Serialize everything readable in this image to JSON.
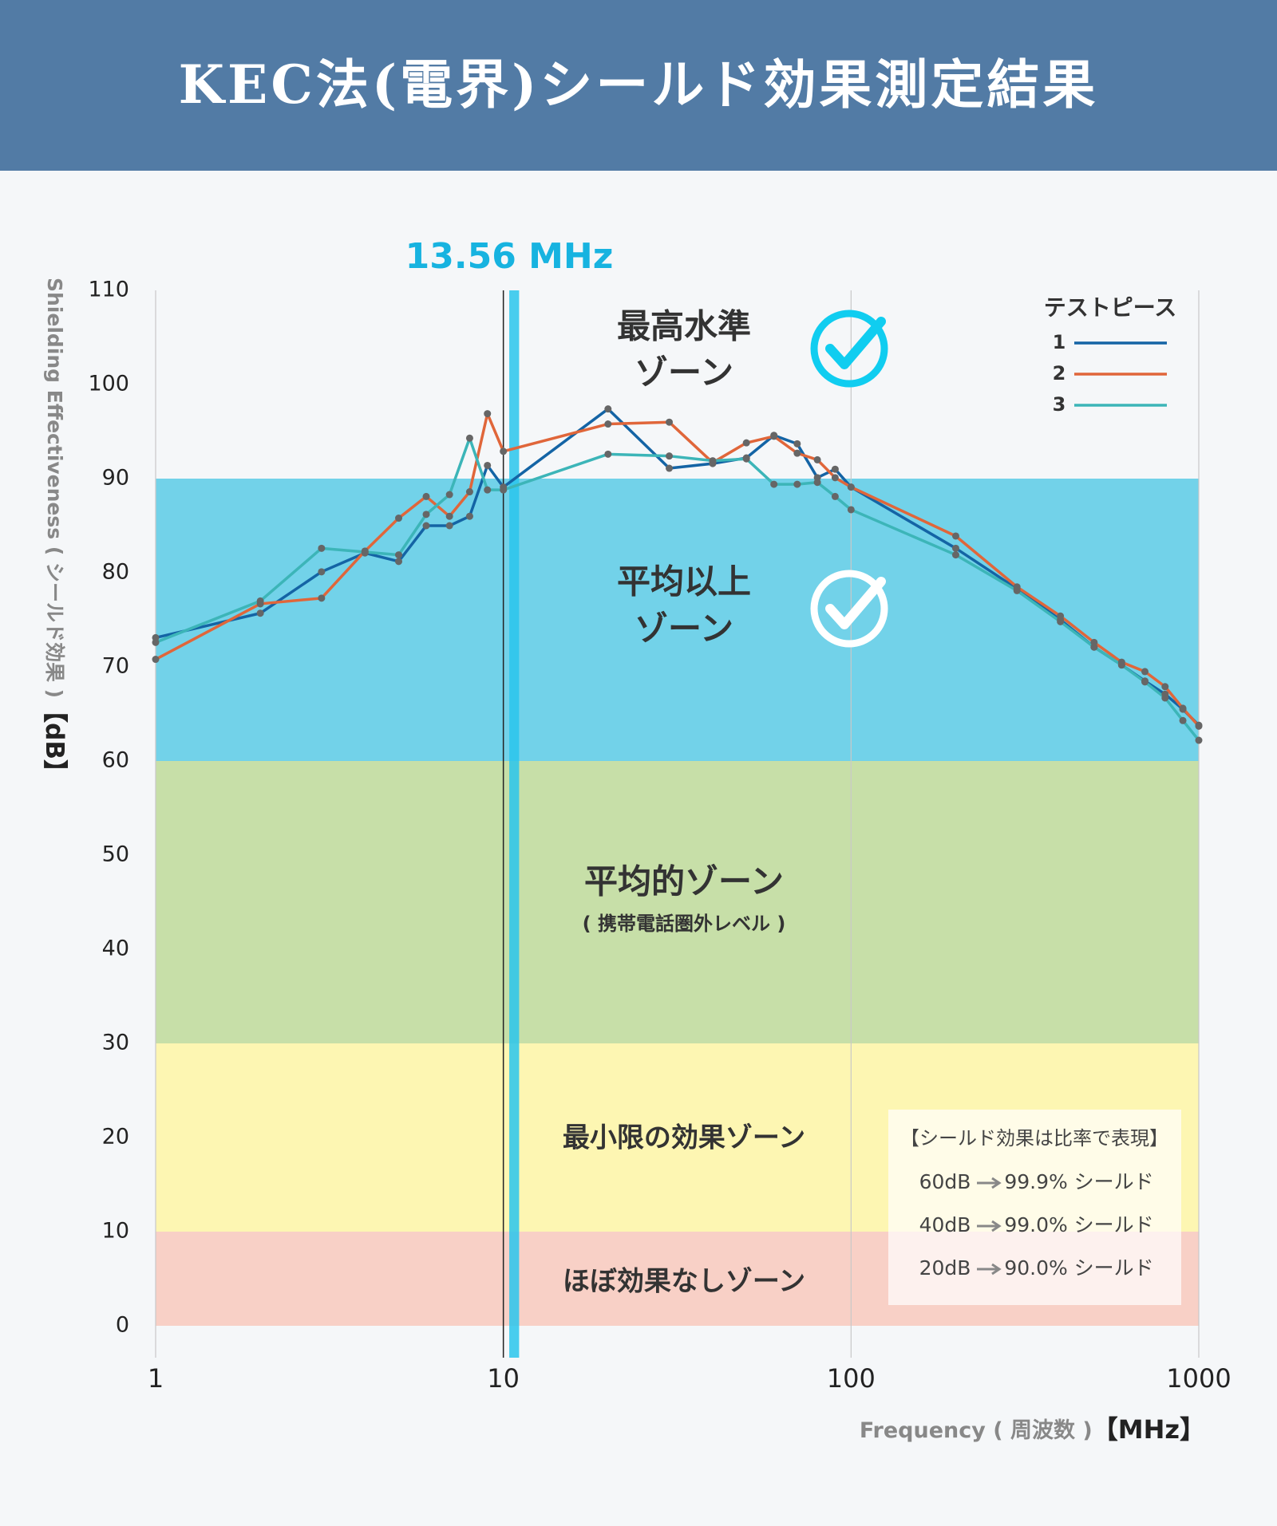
{
  "chart_data": {
    "type": "line",
    "title": "KEC法(電界)シールド効果測定結果",
    "ylabel": "Shielding Effectiveness ( シールド効果 )",
    "yunit": "【dB】",
    "xlabel": "Frequency ( 周波数 )",
    "xunit": "【MHz】",
    "xscale": "log",
    "x": [
      1,
      2,
      3,
      4,
      5,
      6,
      7,
      8,
      9,
      10,
      20,
      30,
      40,
      50,
      60,
      70,
      80,
      90,
      100,
      200,
      300,
      400,
      500,
      600,
      700,
      800,
      900,
      1000
    ],
    "xlim": [
      1,
      1000
    ],
    "xticks": [
      1,
      10,
      100,
      1000
    ],
    "ylim": [
      0,
      110
    ],
    "yticks": [
      0,
      10,
      20,
      30,
      40,
      50,
      60,
      70,
      80,
      90,
      100,
      110
    ],
    "reference_line": 10,
    "marker": {
      "label": "13.56 MHz",
      "x_range": [
        10.4,
        11.1
      ],
      "color": "#29c5ec"
    },
    "zones": [
      {
        "from": 0,
        "to": 10,
        "label": [
          "ほぼ効果なしゾーン"
        ],
        "color": "#f8d0c6"
      },
      {
        "from": 10,
        "to": 30,
        "label": [
          "最小限の効果ゾーン"
        ],
        "color": "#fdf6b2"
      },
      {
        "from": 30,
        "to": 60,
        "label": [
          "平均的ゾーン"
        ],
        "sublabel": "( 携帯電話圏外レベル )",
        "color": "#c7dfa8"
      },
      {
        "from": 60,
        "to": 90,
        "label": [
          "平均以上",
          "ゾーン"
        ],
        "color": "#72d2e9"
      },
      {
        "from": 90,
        "to": 110,
        "label": [
          "最高水準",
          "ゾーン"
        ],
        "color": "none"
      }
    ],
    "legend_title": "テストピース",
    "series": [
      {
        "name": "1",
        "color": "#1464a5",
        "values": [
          73.1,
          75.7,
          80.1,
          82.1,
          81.2,
          85.0,
          85.0,
          86.0,
          91.4,
          89.1,
          97.4,
          91.1,
          91.6,
          92.2,
          94.6,
          93.7,
          90.1,
          91.0,
          89.1,
          82.6,
          78.3,
          75.0,
          72.1,
          70.2,
          68.5,
          67.1,
          65.5,
          63.8
        ]
      },
      {
        "name": "2",
        "color": "#e0663a",
        "values": [
          70.8,
          76.7,
          77.3,
          82.3,
          85.8,
          88.1,
          86.0,
          88.6,
          96.9,
          92.9,
          95.8,
          96.0,
          91.7,
          93.8,
          94.5,
          92.7,
          92.0,
          90.1,
          89.1,
          83.9,
          78.5,
          75.4,
          72.6,
          70.5,
          69.5,
          67.9,
          65.6,
          63.7
        ]
      },
      {
        "name": "3",
        "color": "#3cb5b8",
        "values": [
          72.6,
          77.0,
          82.6,
          82.2,
          81.9,
          86.2,
          88.3,
          94.3,
          88.8,
          88.8,
          92.6,
          92.4,
          91.9,
          92.1,
          89.4,
          89.4,
          89.6,
          88.1,
          86.7,
          81.9,
          78.1,
          74.8,
          72.1,
          70.2,
          68.4,
          66.7,
          64.3,
          62.2
        ]
      }
    ],
    "note": {
      "title": "【シールド効果は比率で表現】",
      "lines": [
        [
          "60dB",
          "99.9% シールド"
        ],
        [
          "40dB",
          "99.0% シールド"
        ],
        [
          "20dB",
          "90.0% シールド"
        ]
      ]
    }
  }
}
